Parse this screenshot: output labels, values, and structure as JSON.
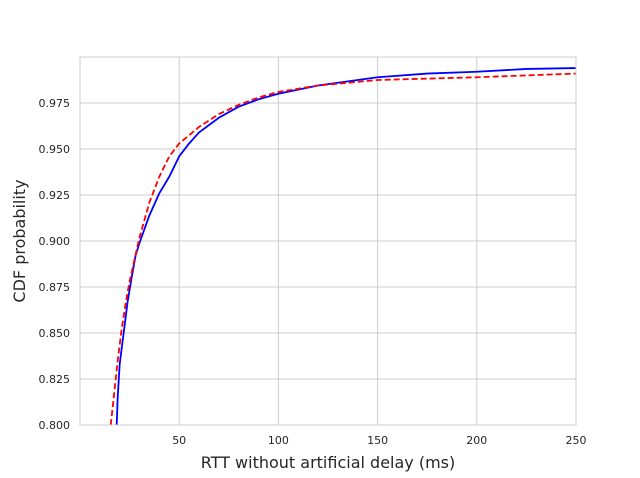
{
  "chart_data": {
    "type": "line",
    "title": "",
    "xlabel": "RTT without artificial delay (ms)",
    "ylabel": "CDF probability",
    "xlim": [
      0,
      250
    ],
    "ylim": [
      0.8,
      1.0
    ],
    "x_ticks": [
      50,
      100,
      150,
      200,
      250
    ],
    "y_ticks": [
      0.8,
      0.825,
      0.85,
      0.875,
      0.9,
      0.925,
      0.95,
      0.975
    ],
    "x_tick_labels": [
      "50",
      "100",
      "150",
      "200",
      "250"
    ],
    "y_tick_labels": [
      "0.800",
      "0.825",
      "0.850",
      "0.875",
      "0.900",
      "0.925",
      "0.950",
      "0.975"
    ],
    "grid": true,
    "legend": "none",
    "series": [
      {
        "color": "#0000ff",
        "dash": "solid",
        "points": [
          [
            18.5,
            0.8
          ],
          [
            19,
            0.815
          ],
          [
            20,
            0.833
          ],
          [
            22,
            0.85
          ],
          [
            24,
            0.867
          ],
          [
            26,
            0.88
          ],
          [
            28,
            0.892
          ],
          [
            30,
            0.899
          ],
          [
            35,
            0.914
          ],
          [
            40,
            0.926
          ],
          [
            45,
            0.935
          ],
          [
            50,
            0.946
          ],
          [
            55,
            0.953
          ],
          [
            60,
            0.959
          ],
          [
            70,
            0.967
          ],
          [
            80,
            0.973
          ],
          [
            90,
            0.977
          ],
          [
            100,
            0.98
          ],
          [
            120,
            0.9845
          ],
          [
            130,
            0.986
          ],
          [
            150,
            0.989
          ],
          [
            175,
            0.991
          ],
          [
            200,
            0.992
          ],
          [
            225,
            0.9935
          ],
          [
            250,
            0.994
          ]
        ]
      },
      {
        "color": "#ff0000",
        "dash": "dashed",
        "points": [
          [
            15.5,
            0.8
          ],
          [
            17,
            0.815
          ],
          [
            19,
            0.835
          ],
          [
            21,
            0.852
          ],
          [
            23,
            0.866
          ],
          [
            25,
            0.878
          ],
          [
            30,
            0.902
          ],
          [
            35,
            0.921
          ],
          [
            40,
            0.935
          ],
          [
            45,
            0.946
          ],
          [
            50,
            0.953
          ],
          [
            60,
            0.962
          ],
          [
            70,
            0.969
          ],
          [
            80,
            0.974
          ],
          [
            90,
            0.978
          ],
          [
            100,
            0.981
          ],
          [
            120,
            0.9845
          ],
          [
            150,
            0.9875
          ],
          [
            200,
            0.989
          ],
          [
            250,
            0.991
          ]
        ]
      }
    ]
  }
}
